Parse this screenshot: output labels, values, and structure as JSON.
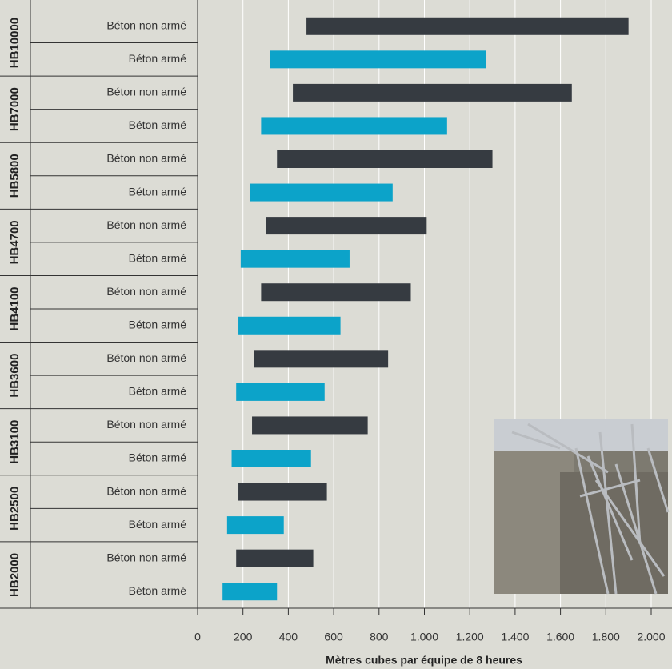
{
  "chart_data": {
    "type": "range-bar",
    "x_label": "Mètres cubes par équipe de 8 heures",
    "groups": [
      "HB10000",
      "HB7000",
      "HB5800",
      "HB4700",
      "HB4100",
      "HB3600",
      "HB3100",
      "HB2500",
      "HB2000"
    ],
    "rows": [
      {
        "label": "Béton non armé",
        "low": 480,
        "high": 1900,
        "color": "#363b41"
      },
      {
        "label": "Béton armé",
        "low": 320,
        "high": 1270,
        "color": "#0ca3c9"
      },
      {
        "label": "Béton non armé",
        "low": 420,
        "high": 1650,
        "color": "#363b41"
      },
      {
        "label": "Béton armé",
        "low": 280,
        "high": 1100,
        "color": "#0ca3c9"
      },
      {
        "label": "Béton non armé",
        "low": 350,
        "high": 1300,
        "color": "#363b41"
      },
      {
        "label": "Béton armé",
        "low": 230,
        "high": 860,
        "color": "#0ca3c9"
      },
      {
        "label": "Béton non armé",
        "low": 300,
        "high": 1010,
        "color": "#363b41"
      },
      {
        "label": "Béton armé",
        "low": 190,
        "high": 670,
        "color": "#0ca3c9"
      },
      {
        "label": "Béton non armé",
        "low": 280,
        "high": 940,
        "color": "#363b41"
      },
      {
        "label": "Béton armé",
        "low": 180,
        "high": 630,
        "color": "#0ca3c9"
      },
      {
        "label": "Béton non armé",
        "low": 250,
        "high": 840,
        "color": "#363b41"
      },
      {
        "label": "Béton armé",
        "low": 170,
        "high": 560,
        "color": "#0ca3c9"
      },
      {
        "label": "Béton non armé",
        "low": 240,
        "high": 750,
        "color": "#363b41"
      },
      {
        "label": "Béton armé",
        "low": 150,
        "high": 500,
        "color": "#0ca3c9"
      },
      {
        "label": "Béton non armé",
        "low": 180,
        "high": 570,
        "color": "#363b41"
      },
      {
        "label": "Béton armé",
        "low": 130,
        "high": 380,
        "color": "#0ca3c9"
      },
      {
        "label": "Béton non armé",
        "low": 170,
        "high": 510,
        "color": "#363b41"
      },
      {
        "label": "Béton armé",
        "low": 110,
        "high": 350,
        "color": "#0ca3c9"
      }
    ],
    "xlim": [
      0,
      2000
    ],
    "xticks": [
      0,
      200,
      400,
      600,
      800,
      {
        "value": 1000,
        "label": "1.000"
      },
      {
        "value": 1200,
        "label": "1.200"
      },
      {
        "value": 1400,
        "label": "1.400"
      },
      {
        "value": 1600,
        "label": "1.600"
      },
      {
        "value": 1800,
        "label": "1.800"
      },
      {
        "value": 2000,
        "label": "2.000"
      }
    ],
    "grid": true
  }
}
